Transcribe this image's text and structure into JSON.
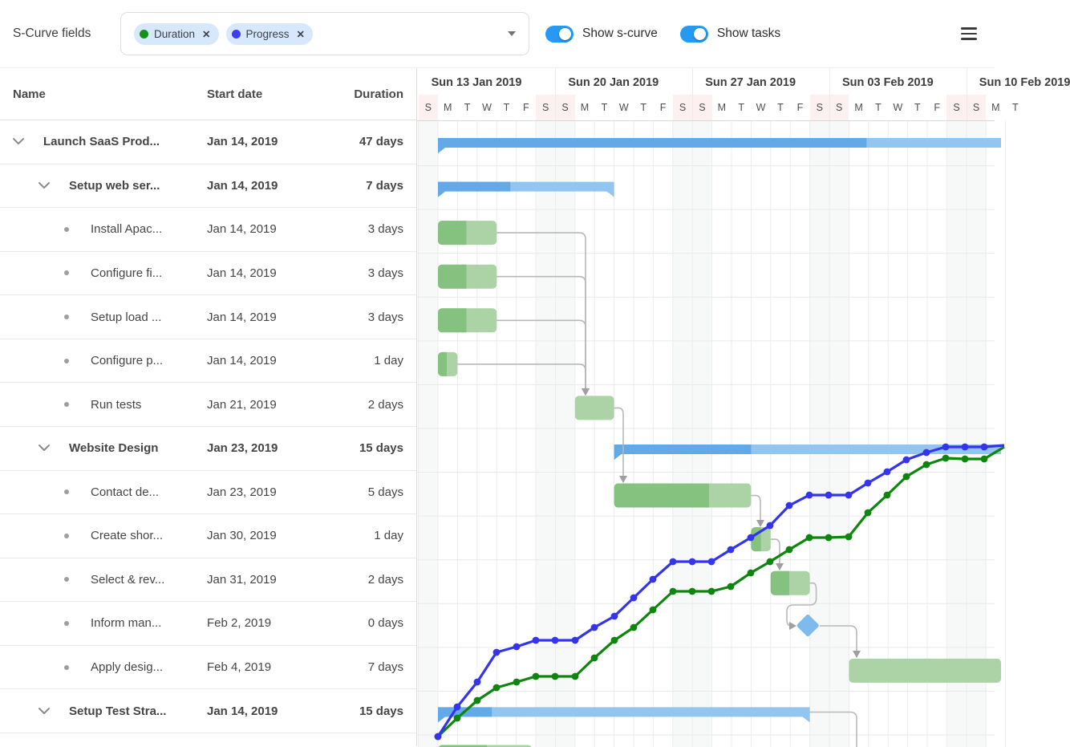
{
  "toolbar": {
    "field_label": "S-Curve fields",
    "chips": [
      {
        "label": "Duration",
        "dot_color": "#14911b",
        "remove_icon": "✕"
      },
      {
        "label": "Progress",
        "dot_color": "#3d3df5",
        "remove_icon": "✕"
      }
    ],
    "toggles": [
      {
        "label": "Show s-curve",
        "on": true
      },
      {
        "label": "Show tasks",
        "on": true
      }
    ],
    "accent_color": "#2699f2"
  },
  "table": {
    "columns": [
      "Name",
      "Start date",
      "Duration"
    ],
    "rows": [
      {
        "name": "Launch SaaS Prod...",
        "start": "Jan 14, 2019",
        "duration": "47 days",
        "level": 0,
        "parent": true
      },
      {
        "name": "Setup web ser...",
        "start": "Jan 14, 2019",
        "duration": "7 days",
        "level": 1,
        "parent": true
      },
      {
        "name": "Install Apac...",
        "start": "Jan 14, 2019",
        "duration": "3 days",
        "level": 2,
        "parent": false
      },
      {
        "name": "Configure fi...",
        "start": "Jan 14, 2019",
        "duration": "3 days",
        "level": 2,
        "parent": false
      },
      {
        "name": "Setup load ...",
        "start": "Jan 14, 2019",
        "duration": "3 days",
        "level": 2,
        "parent": false
      },
      {
        "name": "Configure p...",
        "start": "Jan 14, 2019",
        "duration": "1 day",
        "level": 2,
        "parent": false
      },
      {
        "name": "Run tests",
        "start": "Jan 21, 2019",
        "duration": "2 days",
        "level": 2,
        "parent": false
      },
      {
        "name": "Website Design",
        "start": "Jan 23, 2019",
        "duration": "15 days",
        "level": 1,
        "parent": true
      },
      {
        "name": "Contact de...",
        "start": "Jan 23, 2019",
        "duration": "5 days",
        "level": 2,
        "parent": false
      },
      {
        "name": "Create shor...",
        "start": "Jan 30, 2019",
        "duration": "1 day",
        "level": 2,
        "parent": false
      },
      {
        "name": "Select & rev...",
        "start": "Jan 31, 2019",
        "duration": "2 days",
        "level": 2,
        "parent": false
      },
      {
        "name": "Inform man...",
        "start": "Feb 2, 2019",
        "duration": "0 days",
        "level": 2,
        "parent": false
      },
      {
        "name": "Apply desig...",
        "start": "Feb 4, 2019",
        "duration": "7 days",
        "level": 2,
        "parent": false
      },
      {
        "name": "Setup Test Stra...",
        "start": "Jan 14, 2019",
        "duration": "15 days",
        "level": 1,
        "parent": true
      }
    ]
  },
  "timeline": {
    "origin_x": 521.6,
    "day_width": 24.4,
    "weeks": [
      "Sun 13 Jan 2019",
      "Sun 20 Jan 2019",
      "Sun 27 Jan 2019",
      "Sun 03 Feb 2019",
      "Sun 10 Feb 2019"
    ],
    "day_letters": [
      "S",
      "M",
      "T",
      "W",
      "T",
      "F",
      "S"
    ]
  },
  "gantt": {
    "row_start_y": 151,
    "row_height": 54.57,
    "colors": {
      "parent": "#92c5f0",
      "parent_progress": "#63a9e8",
      "task": "#acd3a5",
      "task_progress": "#85c27f",
      "milestone": "#7fbaed",
      "dependency": "#b8b8b8",
      "arrow": "#9f9f9f",
      "weekend": "#f7f8f8",
      "gridline_v": "#ededf0",
      "gridline_h": "#e9e9eb"
    },
    "bars": [
      {
        "task": "Launch SaaS Prod...",
        "row": 0,
        "kind": "parent",
        "start_day": 1,
        "end_day": 31,
        "progress_day": 22.9,
        "clip_right": true
      },
      {
        "task": "Setup web ser...",
        "row": 1,
        "kind": "parent",
        "start_day": 1,
        "end_day": 10,
        "progress_day": 4.7
      },
      {
        "task": "Install Apac...",
        "row": 2,
        "kind": "task",
        "start_day": 1,
        "end_day": 4,
        "progress_day": 2.45
      },
      {
        "task": "Configure fi...",
        "row": 3,
        "kind": "task",
        "start_day": 1,
        "end_day": 4,
        "progress_day": 2.45
      },
      {
        "task": "Setup load ...",
        "row": 4,
        "kind": "task",
        "start_day": 1,
        "end_day": 4,
        "progress_day": 2.45
      },
      {
        "task": "Configure p...",
        "row": 5,
        "kind": "task",
        "start_day": 1,
        "end_day": 2,
        "progress_day": 1.45
      },
      {
        "task": "Run tests",
        "row": 6,
        "kind": "task",
        "start_day": 8,
        "end_day": 10
      },
      {
        "task": "Website Design",
        "row": 7,
        "kind": "parent",
        "start_day": 10,
        "end_day": 31,
        "progress_day": 17,
        "clip_right": true
      },
      {
        "task": "Contact de...",
        "row": 8,
        "kind": "task",
        "start_day": 10,
        "end_day": 17,
        "progress_day": 14.85
      },
      {
        "task": "Create shor...",
        "row": 9,
        "kind": "task",
        "start_day": 17,
        "end_day": 18,
        "progress_day": 17.5
      },
      {
        "task": "Select & rev...",
        "row": 10,
        "kind": "task",
        "start_day": 18,
        "end_day": 20,
        "progress_day": 18.95
      },
      {
        "task": "Inform man...",
        "row": 11,
        "kind": "milestone",
        "start_day": 19.9
      },
      {
        "task": "Apply desig...",
        "row": 12,
        "kind": "task",
        "start_day": 22,
        "end_day": 31,
        "clip_right": true
      },
      {
        "task": "Setup Test Stra...",
        "row": 13,
        "kind": "parent",
        "start_day": 1,
        "end_day": 20,
        "progress_day": 3.75
      },
      {
        "task": "",
        "row": 14,
        "kind": "task",
        "start_day": 1,
        "end_day": 5.8,
        "progress_day": 3.5,
        "y_override": 927.5
      }
    ],
    "dependencies": [
      {
        "from": "Install Apac...",
        "to": "Run tests",
        "points": [
          [
            619.2,
            289.1
          ],
          [
            730,
            289.1
          ],
          [
            730,
            491
          ]
        ],
        "arrow": "down"
      },
      {
        "from": "Configure fi...",
        "to": "Run tests",
        "points": [
          [
            619.2,
            343.7
          ],
          [
            730,
            343.7
          ],
          [
            730,
            491
          ]
        ],
        "arrow": "down"
      },
      {
        "from": "Setup load ...",
        "to": "Run tests",
        "points": [
          [
            619.2,
            398.3
          ],
          [
            730,
            398.3
          ],
          [
            730,
            491
          ]
        ],
        "arrow": "down"
      },
      {
        "from": "Configure p...",
        "to": "Run tests",
        "points": [
          [
            570.4,
            452.9
          ],
          [
            730,
            452.9
          ],
          [
            730,
            491
          ]
        ],
        "arrow": "down"
      },
      {
        "from": "Run tests",
        "to": "Contact de...",
        "points": [
          [
            765.6,
            507.4
          ],
          [
            777,
            507.4
          ],
          [
            777,
            600
          ]
        ],
        "arrow": "down"
      },
      {
        "from": "Contact de...",
        "to": "Create shor...",
        "points": [
          [
            936.4,
            616.6
          ],
          [
            948,
            616.6
          ],
          [
            948,
            655
          ]
        ],
        "arrow": "down"
      },
      {
        "from": "Create shor...",
        "to": "Select & rev...",
        "points": [
          [
            960.8,
            671.1
          ],
          [
            972,
            671.1
          ],
          [
            972,
            709
          ]
        ],
        "arrow": "down"
      },
      {
        "from": "Select & rev...",
        "to": "Inform man...",
        "points": [
          [
            1009.6,
            725.7
          ],
          [
            1017.6,
            725.7
          ],
          [
            1017.6,
            753
          ],
          [
            981,
            753
          ],
          [
            981,
            779
          ],
          [
            992,
            779
          ]
        ],
        "arrow": "right"
      },
      {
        "from": "Inform man...",
        "to": "Apply desig...",
        "points": [
          [
            1022,
            779
          ],
          [
            1068,
            779
          ],
          [
            1068,
            818
          ]
        ],
        "arrow": "down"
      },
      {
        "from": "Setup Test Stra...",
        "to": "",
        "points": [
          [
            1009.6,
            886.5
          ],
          [
            1068,
            886.5
          ],
          [
            1068,
            932
          ]
        ],
        "arrow": "none"
      }
    ]
  },
  "chart_data": {
    "type": "line",
    "series": [
      {
        "name": "Duration",
        "color": "#0e860e",
        "points": [
          [
            546,
            917
          ],
          [
            570,
            894
          ],
          [
            595,
            872
          ],
          [
            619,
            856
          ],
          [
            644,
            849
          ],
          [
            668,
            842
          ],
          [
            692,
            842
          ],
          [
            717,
            842
          ],
          [
            741,
            819
          ],
          [
            766,
            797
          ],
          [
            790,
            781
          ],
          [
            814,
            759
          ],
          [
            839,
            736
          ],
          [
            863,
            736
          ],
          [
            887,
            736
          ],
          [
            911,
            730
          ],
          [
            936,
            713
          ],
          [
            960,
            699
          ],
          [
            984,
            684
          ],
          [
            1009,
            669
          ],
          [
            1033,
            669
          ],
          [
            1058,
            668
          ],
          [
            1082,
            638
          ],
          [
            1106,
            616
          ],
          [
            1130,
            593
          ],
          [
            1155,
            578
          ],
          [
            1179,
            570
          ],
          [
            1203,
            571
          ],
          [
            1227,
            571
          ],
          [
            1252,
            556
          ]
        ]
      },
      {
        "name": "Progress",
        "color": "#3434ec",
        "points": [
          [
            546,
            917
          ],
          [
            570,
            880
          ],
          [
            595,
            849
          ],
          [
            619,
            812
          ],
          [
            644,
            805
          ],
          [
            668,
            797
          ],
          [
            692,
            797
          ],
          [
            717,
            797
          ],
          [
            741,
            781
          ],
          [
            766,
            767
          ],
          [
            790,
            744
          ],
          [
            814,
            721
          ],
          [
            839,
            699
          ],
          [
            863,
            699
          ],
          [
            887,
            699
          ],
          [
            911,
            684
          ],
          [
            936,
            669
          ],
          [
            960,
            654
          ],
          [
            984,
            629
          ],
          [
            1009,
            616
          ],
          [
            1033,
            616
          ],
          [
            1058,
            616
          ],
          [
            1082,
            601
          ],
          [
            1106,
            587
          ],
          [
            1130,
            572
          ],
          [
            1155,
            563
          ],
          [
            1179,
            556
          ],
          [
            1203,
            556
          ],
          [
            1227,
            556
          ],
          [
            1252,
            554
          ]
        ]
      }
    ]
  }
}
